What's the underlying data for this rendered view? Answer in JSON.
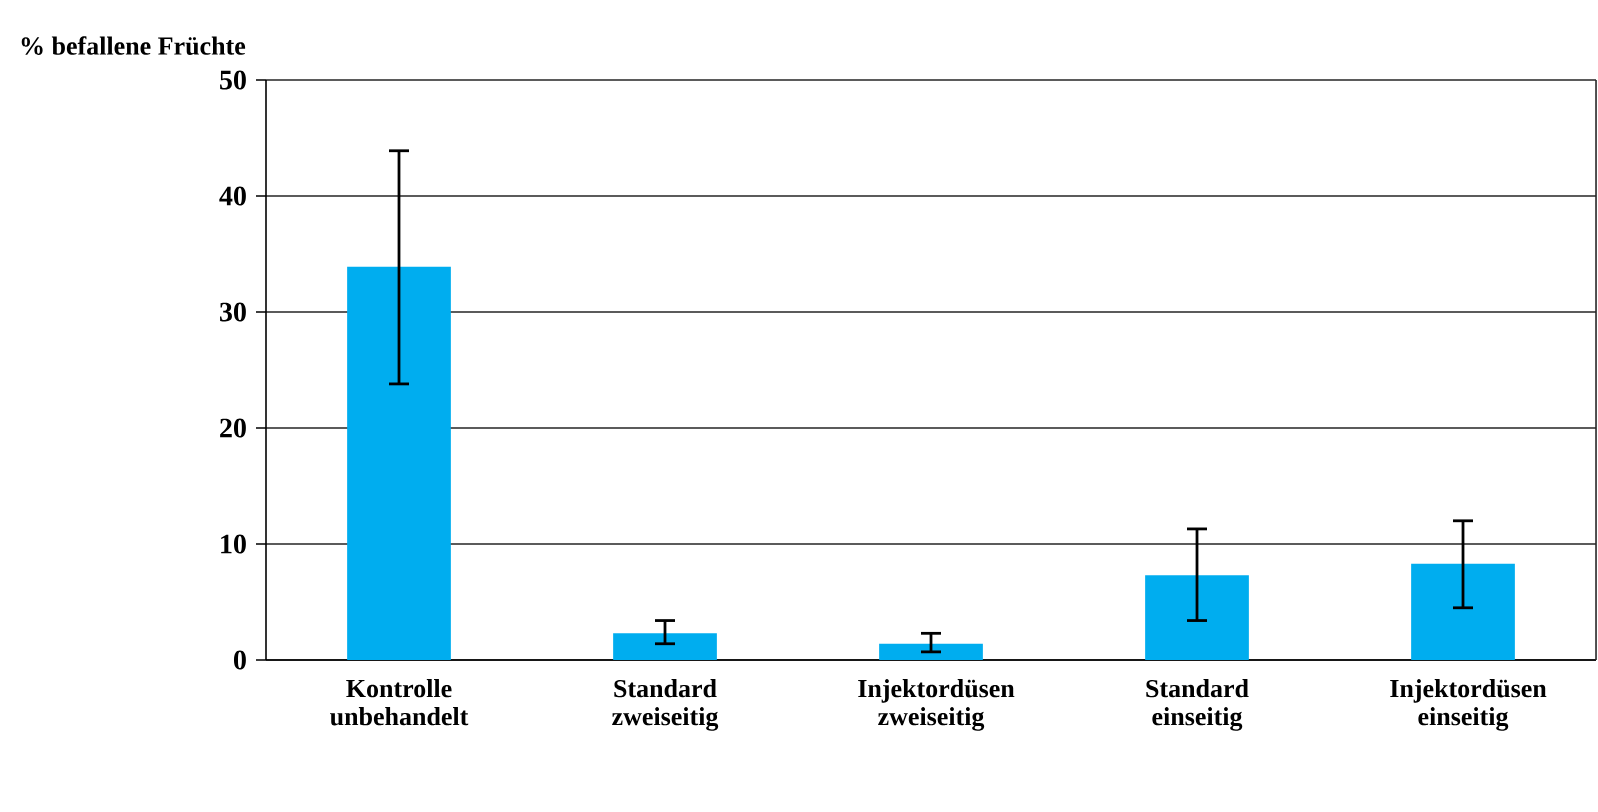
{
  "chart_data": {
    "type": "bar",
    "ylabel": "% befallene Früchte",
    "categories": [
      "Kontrolle unbehandelt",
      "Standard zweiseitig",
      "Injektordüsen zweiseitig",
      "Standard einseitig",
      "Injektordüsen einseitig"
    ],
    "values": [
      33.9,
      2.3,
      1.4,
      7.3,
      8.3
    ],
    "errors": [
      [
        23.8,
        43.9
      ],
      [
        1.4,
        3.4
      ],
      [
        0.7,
        2.3
      ],
      [
        3.4,
        11.3
      ],
      [
        4.5,
        12.0
      ]
    ],
    "color": "#00adef",
    "ylim": [
      0,
      50
    ],
    "yticks": [
      0,
      10,
      20,
      30,
      40,
      50
    ],
    "grid": "y"
  }
}
